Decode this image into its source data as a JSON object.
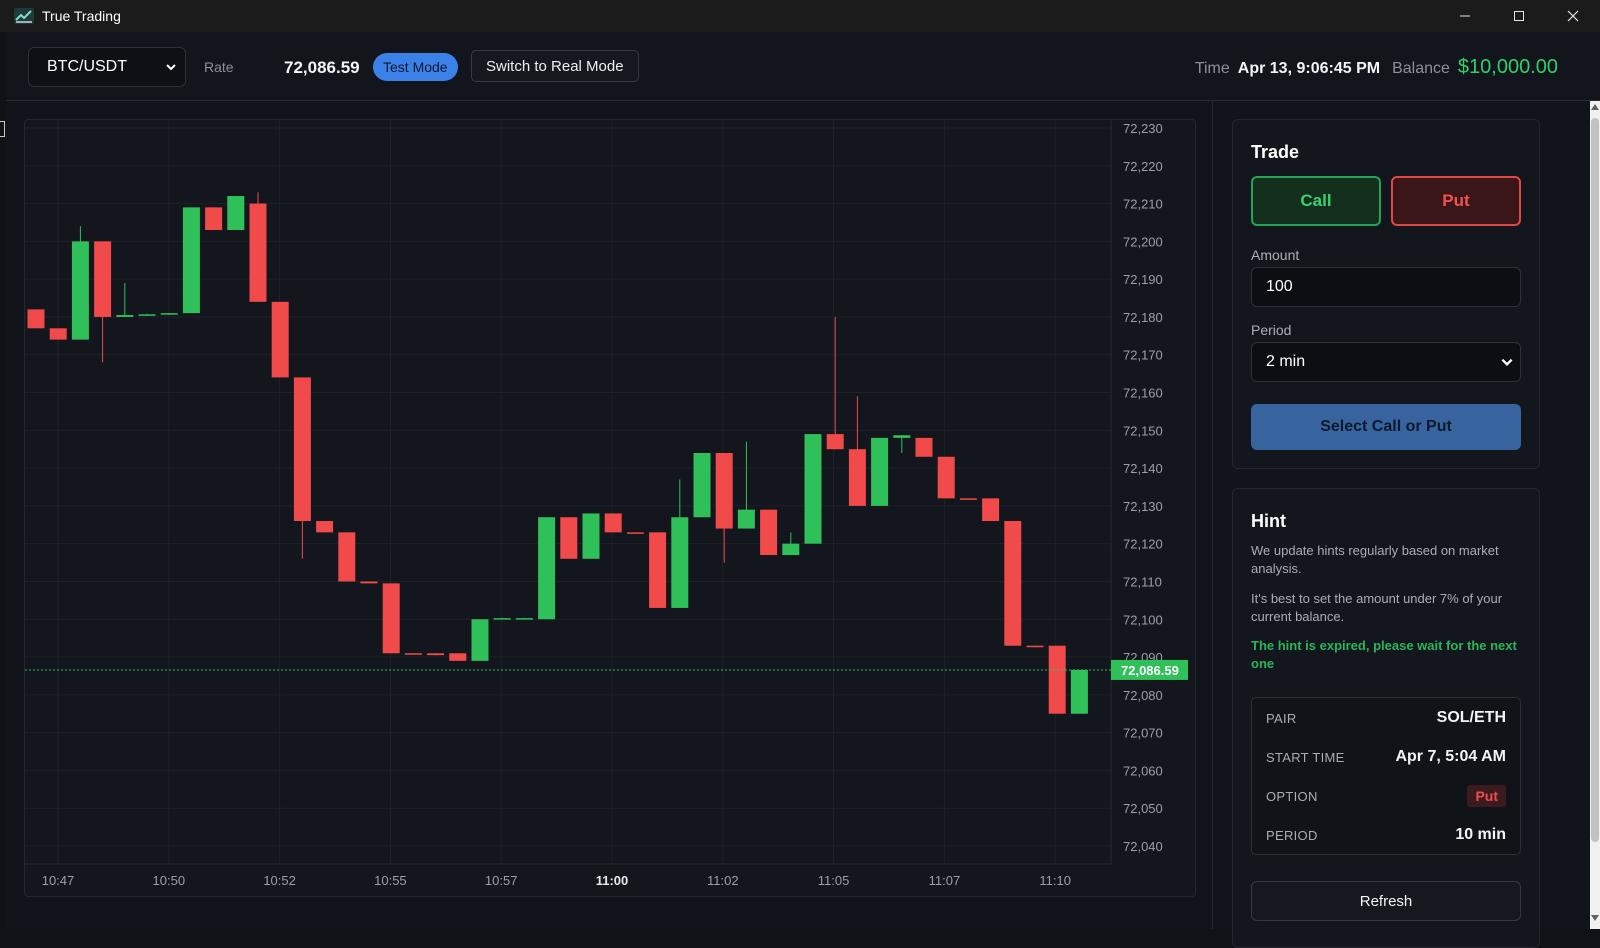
{
  "window": {
    "title": "True Trading",
    "app_icon": "chart-app-icon",
    "controls": [
      "minimize-icon",
      "maximize-icon",
      "close-icon"
    ]
  },
  "topbar": {
    "pair": "BTC/USDT",
    "rate_label": "Rate",
    "rate_value": "72,086.59",
    "mode_badge": "Test Mode",
    "switch_button": "Switch to Real Mode",
    "time_label": "Time",
    "time_value": "Apr 13, 9:06:45 PM",
    "balance_label": "Balance",
    "balance_value": "$10,000.00"
  },
  "colors": {
    "up": "#2fc05a",
    "down": "#f04a4a",
    "accent": "#3b82e8",
    "balance": "#2fd06a"
  },
  "chart_data": {
    "type": "candlestick",
    "ylim": [
      72040,
      72230
    ],
    "y_ticks": [
      "72,230",
      "72,220",
      "72,210",
      "72,200",
      "72,190",
      "72,180",
      "72,170",
      "72,160",
      "72,150",
      "72,140",
      "72,130",
      "72,120",
      "72,110",
      "72,100",
      "72,090",
      "72,080",
      "72,070",
      "72,060",
      "72,050",
      "72,040"
    ],
    "x_ticks": [
      "10:47",
      "10:50",
      "10:52",
      "10:55",
      "10:57",
      "11:00",
      "11:02",
      "11:05",
      "11:07",
      "11:10"
    ],
    "current_price_label": "72,086.59",
    "current_price": 72086.59,
    "candles": [
      {
        "o": 72182,
        "c": 72177,
        "h": 72182,
        "l": 72177
      },
      {
        "o": 72177,
        "c": 72174,
        "h": 72177,
        "l": 72174
      },
      {
        "o": 72174,
        "c": 72200,
        "h": 72204,
        "l": 72174
      },
      {
        "o": 72200,
        "c": 72180,
        "h": 72200,
        "l": 72168
      },
      {
        "o": 72180,
        "c": 72180.5,
        "h": 72189,
        "l": 72180
      },
      {
        "o": 72180.5,
        "c": 72180.7,
        "h": 72180.8,
        "l": 72180.5
      },
      {
        "o": 72180.7,
        "c": 72181,
        "h": 72181,
        "l": 72180.5
      },
      {
        "o": 72181,
        "c": 72209,
        "h": 72209,
        "l": 72181
      },
      {
        "o": 72209,
        "c": 72203,
        "h": 72209,
        "l": 72203
      },
      {
        "o": 72203,
        "c": 72212,
        "h": 72212,
        "l": 72203
      },
      {
        "o": 72210,
        "c": 72184,
        "h": 72213,
        "l": 72184
      },
      {
        "o": 72184,
        "c": 72164,
        "h": 72184,
        "l": 72164
      },
      {
        "o": 72164,
        "c": 72126,
        "h": 72164,
        "l": 72116
      },
      {
        "o": 72126,
        "c": 72123,
        "h": 72126,
        "l": 72123
      },
      {
        "o": 72123,
        "c": 72110,
        "h": 72123,
        "l": 72110
      },
      {
        "o": 72110,
        "c": 72109.5,
        "h": 72110,
        "l": 72109.5
      },
      {
        "o": 72109.5,
        "c": 72091,
        "h": 72109.5,
        "l": 72091
      },
      {
        "o": 72091,
        "c": 72090.7,
        "h": 72091,
        "l": 72090.7
      },
      {
        "o": 72091,
        "c": 72090.5,
        "h": 72091,
        "l": 72090.5
      },
      {
        "o": 72091,
        "c": 72089,
        "h": 72091,
        "l": 72089
      },
      {
        "o": 72089,
        "c": 72100,
        "h": 72100,
        "l": 72089
      },
      {
        "o": 72100,
        "c": 72100.3,
        "h": 72100.4,
        "l": 72100
      },
      {
        "o": 72100,
        "c": 72100.3,
        "h": 72100.4,
        "l": 72100
      },
      {
        "o": 72100,
        "c": 72127,
        "h": 72127,
        "l": 72100
      },
      {
        "o": 72127,
        "c": 72116,
        "h": 72127,
        "l": 72116
      },
      {
        "o": 72116,
        "c": 72128,
        "h": 72128,
        "l": 72116
      },
      {
        "o": 72128,
        "c": 72123,
        "h": 72128,
        "l": 72123
      },
      {
        "o": 72123,
        "c": 72122.7,
        "h": 72123,
        "l": 72122.7
      },
      {
        "o": 72123,
        "c": 72103,
        "h": 72123,
        "l": 72103
      },
      {
        "o": 72103,
        "c": 72127,
        "h": 72137,
        "l": 72103
      },
      {
        "o": 72127,
        "c": 72144,
        "h": 72144,
        "l": 72127
      },
      {
        "o": 72144,
        "c": 72124,
        "h": 72144,
        "l": 72115
      },
      {
        "o": 72124,
        "c": 72129,
        "h": 72147,
        "l": 72124
      },
      {
        "o": 72129,
        "c": 72117,
        "h": 72129,
        "l": 72117
      },
      {
        "o": 72117,
        "c": 72120,
        "h": 72123,
        "l": 72117
      },
      {
        "o": 72120,
        "c": 72149,
        "h": 72149,
        "l": 72120
      },
      {
        "o": 72149,
        "c": 72145,
        "h": 72180,
        "l": 72145
      },
      {
        "o": 72145,
        "c": 72130,
        "h": 72159,
        "l": 72130
      },
      {
        "o": 72130,
        "c": 72148,
        "h": 72148,
        "l": 72130
      },
      {
        "o": 72148,
        "c": 72148.7,
        "h": 72148.7,
        "l": 72144
      },
      {
        "o": 72148,
        "c": 72143,
        "h": 72148,
        "l": 72143
      },
      {
        "o": 72143,
        "c": 72132,
        "h": 72143,
        "l": 72132
      },
      {
        "o": 72132,
        "c": 72131.7,
        "h": 72132,
        "l": 72131.7
      },
      {
        "o": 72132,
        "c": 72126,
        "h": 72132,
        "l": 72126
      },
      {
        "o": 72126,
        "c": 72093,
        "h": 72126,
        "l": 72093
      },
      {
        "o": 72093,
        "c": 72092.6,
        "h": 72093,
        "l": 72092.6
      },
      {
        "o": 72093,
        "c": 72075,
        "h": 72093,
        "l": 72075
      },
      {
        "o": 72075,
        "c": 72086.59,
        "h": 72086.59,
        "l": 72075
      }
    ]
  },
  "trade": {
    "title": "Trade",
    "call_label": "Call",
    "put_label": "Put",
    "amount_label": "Amount",
    "amount_value": "100",
    "period_label": "Period",
    "period_value": "2 min",
    "submit_label": "Select Call or Put"
  },
  "hint": {
    "title": "Hint",
    "line1": "We update hints regularly based on market analysis.",
    "line2": "It's best to set the amount under 7% of your current balance.",
    "expired": "The hint is expired, please wait for the next one",
    "rows": [
      {
        "key": "PAIR",
        "value": "SOL/ETH"
      },
      {
        "key": "START TIME",
        "value": "Apr 7, 5:04 AM"
      },
      {
        "key": "OPTION",
        "value": "Put"
      },
      {
        "key": "PERIOD",
        "value": "10 min"
      }
    ],
    "refresh_label": "Refresh"
  }
}
